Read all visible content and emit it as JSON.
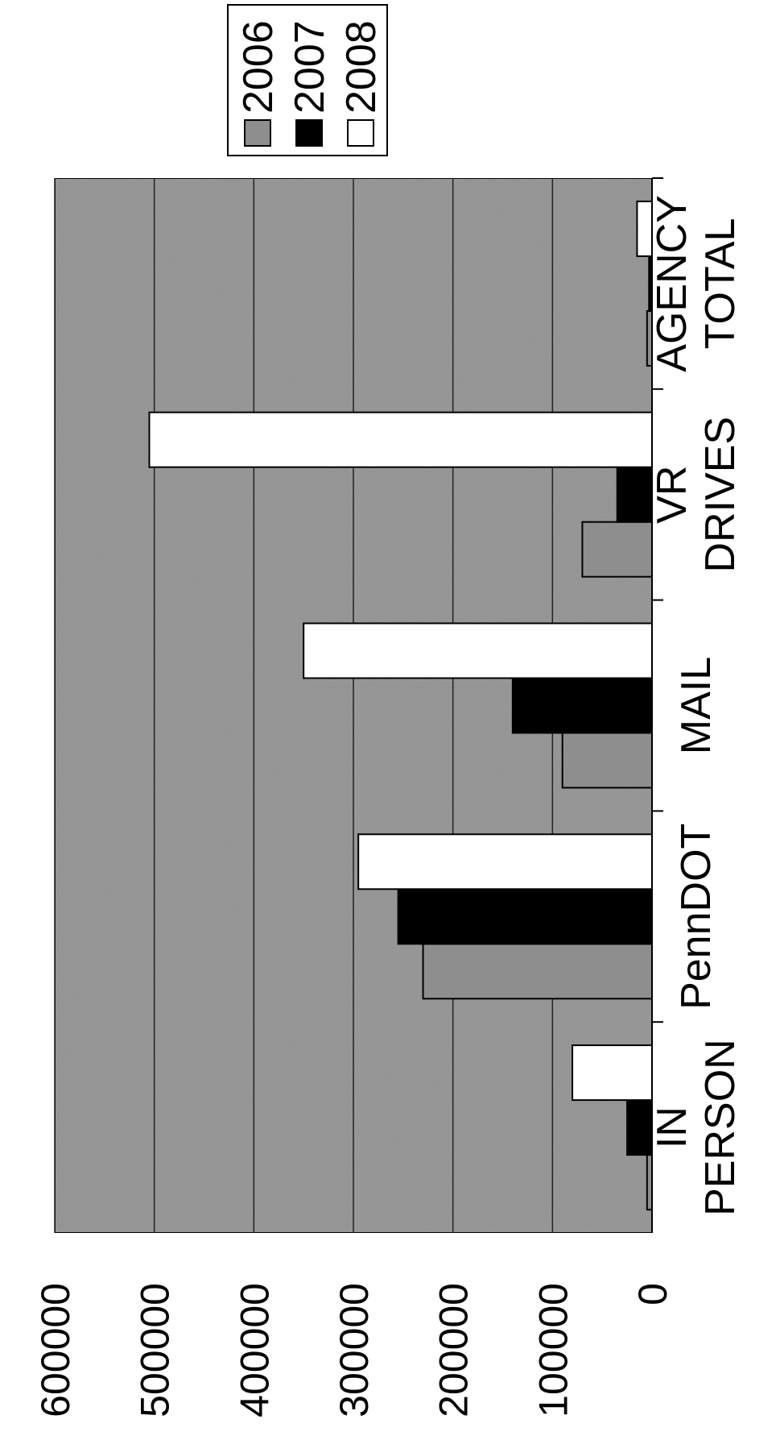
{
  "chart_data": {
    "type": "bar",
    "categories": [
      [
        "IN",
        "PERSON"
      ],
      [
        "PennDOT"
      ],
      [
        "MAIL"
      ],
      [
        "VR",
        "DRIVES"
      ],
      [
        "AGENCY",
        "TOTAL"
      ]
    ],
    "series": [
      {
        "name": "2006",
        "color": "#8e8e8e",
        "values": [
          5000,
          230000,
          90000,
          70000,
          5000
        ]
      },
      {
        "name": "2007",
        "color": "#000000",
        "values": [
          25000,
          255000,
          140000,
          35000,
          3000
        ]
      },
      {
        "name": "2008",
        "color": "#ffffff",
        "values": [
          80000,
          295000,
          350000,
          505000,
          15000
        ]
      }
    ],
    "ylim": [
      0,
      600000
    ],
    "yticks": [
      0,
      100000,
      200000,
      300000,
      400000,
      500000,
      600000
    ],
    "grid": true,
    "legend": "right"
  }
}
